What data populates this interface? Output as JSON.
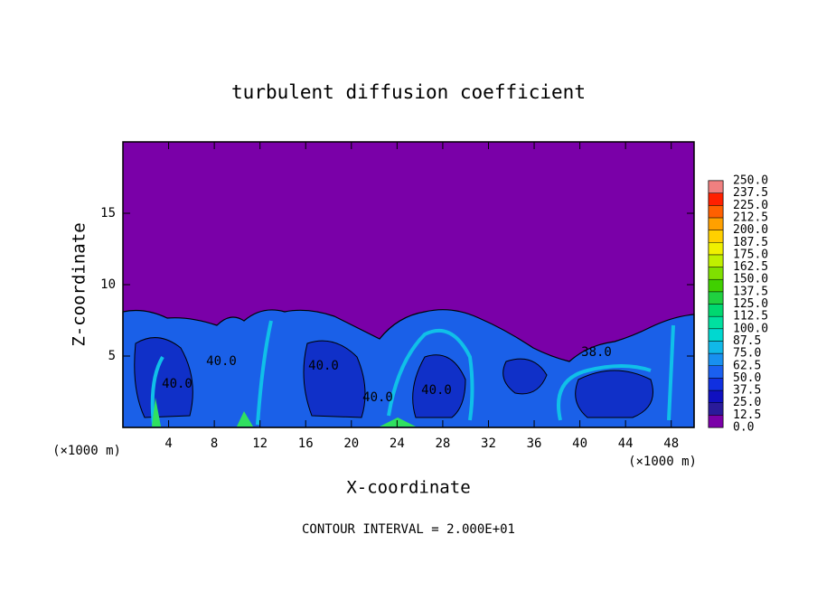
{
  "chart_data": {
    "type": "contour",
    "title": "turbulent diffusion coefficient",
    "xlabel": "X-coordinate",
    "ylabel": "Z-coordinate",
    "x_unit": "(×1000 m)",
    "x_unit_right": "(×1000 m)",
    "footnote": "CONTOUR INTERVAL = 2.000E+01",
    "xlim": [
      0,
      50
    ],
    "ylim": [
      0,
      20
    ],
    "xticks": [
      4,
      8,
      12,
      16,
      20,
      24,
      28,
      32,
      36,
      40,
      44,
      48
    ],
    "yticks": [
      5,
      10,
      15
    ],
    "contour_labels": [
      "40.0",
      "40.0",
      "40.0",
      "40.0",
      "40.0",
      "38.0"
    ],
    "colorbar": {
      "levels": [
        {
          "value": 0,
          "label": "0.0"
        },
        {
          "value": 12.5,
          "label": "12.5"
        },
        {
          "value": 25,
          "label": "25.0"
        },
        {
          "value": 37.5,
          "label": "37.5"
        },
        {
          "value": 50,
          "label": "50.0"
        },
        {
          "value": 62.5,
          "label": "62.5"
        },
        {
          "value": 75,
          "label": "75.0"
        },
        {
          "value": 87.5,
          "label": "87.5"
        },
        {
          "value": 100,
          "label": "100.0"
        },
        {
          "value": 112.5,
          "label": "112.5"
        },
        {
          "value": 125,
          "label": "125.0"
        },
        {
          "value": 137.5,
          "label": "137.5"
        },
        {
          "value": 150,
          "label": "150.0"
        },
        {
          "value": 162.5,
          "label": "162.5"
        },
        {
          "value": 175,
          "label": "175.0"
        },
        {
          "value": 187.5,
          "label": "187.5"
        },
        {
          "value": 200,
          "label": "200.0"
        },
        {
          "value": 212.5,
          "label": "212.5"
        },
        {
          "value": 225,
          "label": "225.0"
        },
        {
          "value": 237.5,
          "label": "237.5"
        },
        {
          "value": 250,
          "label": "250.0"
        }
      ],
      "colors": [
        "#7a00a8",
        "#2a1a9a",
        "#1010c0",
        "#1030e0",
        "#1a60f0",
        "#1890f0",
        "#10b8e8",
        "#00d8d0",
        "#00e0a0",
        "#00d870",
        "#20d040",
        "#40d000",
        "#80e000",
        "#c0f000",
        "#f0f000",
        "#ffd000",
        "#ffa000",
        "#ff6000",
        "#ff2000",
        "#f08080"
      ]
    }
  }
}
